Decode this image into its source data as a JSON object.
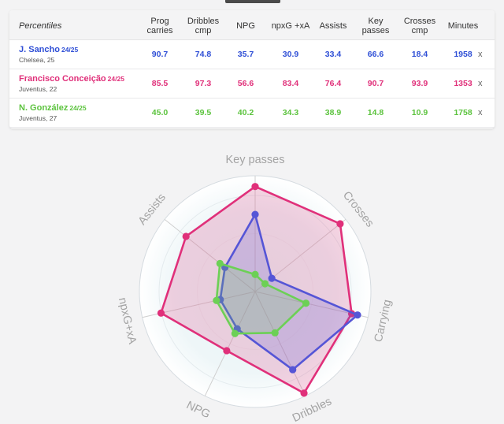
{
  "table": {
    "title": "Percentiles",
    "columns": [
      {
        "key": "prog",
        "label": [
          "Prog",
          "carries"
        ]
      },
      {
        "key": "drib",
        "label": [
          "Dribbles",
          "cmp"
        ]
      },
      {
        "key": "npg",
        "label": [
          "NPG"
        ]
      },
      {
        "key": "npxg",
        "label": [
          "npxG +xA"
        ]
      },
      {
        "key": "ast",
        "label": [
          "Assists"
        ]
      },
      {
        "key": "kp",
        "label": [
          "Key",
          "passes"
        ]
      },
      {
        "key": "cross",
        "label": [
          "Crosses",
          "cmp"
        ]
      },
      {
        "key": "min",
        "label": [
          "Minutes"
        ]
      }
    ],
    "remove_label": "x"
  },
  "players": [
    {
      "name": "J. Sancho",
      "season": "24/25",
      "club": "Chelsea, 25",
      "color": "#2f4fd6",
      "values": [
        "90.7",
        "74.8",
        "35.7",
        "30.9",
        "33.4",
        "66.6",
        "18.4",
        "1958"
      ]
    },
    {
      "name": "Francisco Conceição",
      "season": "24/25",
      "club": "Juventus, 22",
      "color": "#e0307a",
      "values": [
        "85.5",
        "97.3",
        "56.6",
        "83.4",
        "76.4",
        "90.7",
        "93.9",
        "1353"
      ]
    },
    {
      "name": "N. González",
      "season": "24/25",
      "club": "Juventus, 27",
      "color": "#5cc33e",
      "values": [
        "45.0",
        "39.5",
        "40.2",
        "34.3",
        "38.9",
        "14.8",
        "10.9",
        "1758"
      ]
    }
  ],
  "chart_data": {
    "type": "radar",
    "axes": [
      "Key passes",
      "Crosses",
      "Carrying",
      "Dribbles",
      "NPG",
      "npxG+xA",
      "Assists"
    ],
    "range": [
      0,
      100
    ],
    "series": [
      {
        "name": "Francisco Conceição",
        "color": "#e0307a",
        "values": [
          90.7,
          93.9,
          85.5,
          97.3,
          56.6,
          83.4,
          76.4
        ]
      },
      {
        "name": "J. Sancho",
        "color": "#5555d6",
        "values": [
          66.6,
          18.4,
          90.7,
          74.8,
          35.7,
          30.9,
          33.4
        ]
      },
      {
        "name": "N. González",
        "color": "#6cd055",
        "values": [
          14.8,
          10.9,
          45.0,
          39.5,
          40.2,
          34.3,
          38.9
        ]
      }
    ]
  }
}
